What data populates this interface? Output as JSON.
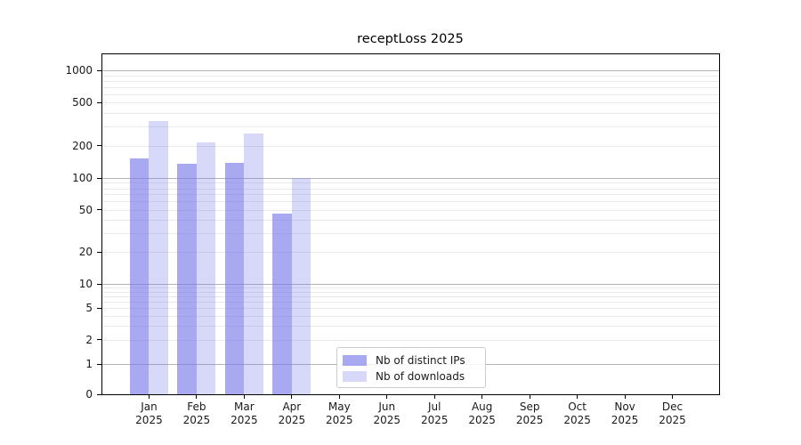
{
  "chart_data": {
    "type": "bar",
    "title": "receptLoss 2025",
    "xlabel": "",
    "ylabel": "",
    "y_scale": "symlog",
    "ylim": [
      0,
      1450
    ],
    "grid": true,
    "legend_position": "bottom-center",
    "categories": [
      {
        "month": "Jan",
        "year": "2025"
      },
      {
        "month": "Feb",
        "year": "2025"
      },
      {
        "month": "Mar",
        "year": "2025"
      },
      {
        "month": "Apr",
        "year": "2025"
      },
      {
        "month": "May",
        "year": "2025"
      },
      {
        "month": "Jun",
        "year": "2025"
      },
      {
        "month": "Jul",
        "year": "2025"
      },
      {
        "month": "Aug",
        "year": "2025"
      },
      {
        "month": "Sep",
        "year": "2025"
      },
      {
        "month": "Oct",
        "year": "2025"
      },
      {
        "month": "Nov",
        "year": "2025"
      },
      {
        "month": "Dec",
        "year": "2025"
      }
    ],
    "series": [
      {
        "name": "Nb of distinct IPs",
        "color": "rgba(121,121,234,0.64)",
        "values": [
          152,
          136,
          139,
          46,
          0,
          0,
          0,
          0,
          0,
          0,
          0,
          0
        ]
      },
      {
        "name": "Nb of downloads",
        "color": "rgba(121,121,234,0.29)",
        "values": [
          341,
          215,
          261,
          100,
          0,
          0,
          0,
          0,
          0,
          0,
          0,
          0
        ]
      }
    ],
    "y_ticks": [
      {
        "value": 1000,
        "label": "1000"
      },
      {
        "value": 500,
        "label": "500"
      },
      {
        "value": 200,
        "label": "200"
      },
      {
        "value": 100,
        "label": "100"
      },
      {
        "value": 50,
        "label": "50"
      },
      {
        "value": 20,
        "label": "20"
      },
      {
        "value": 10,
        "label": "10"
      },
      {
        "value": 5,
        "label": "5"
      },
      {
        "value": 2,
        "label": "2"
      },
      {
        "value": 1,
        "label": "1"
      },
      {
        "value": 0,
        "label": "0"
      }
    ]
  },
  "colors": {
    "grid_major": "#b3b3b3",
    "grid_minor": "#e9e9e9",
    "spine": "#000000",
    "text": "#1a1a1a",
    "background": "#ffffff"
  }
}
